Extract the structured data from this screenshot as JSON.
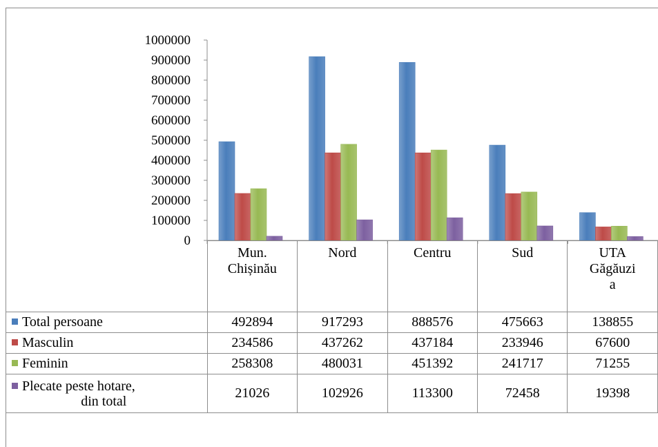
{
  "chart_data": {
    "type": "bar",
    "categories": [
      "Mun. Chișinău",
      "Nord",
      "Centru",
      "Sud",
      "UTA Găgăuzia"
    ],
    "category_labels": [
      "Mun.\nChișinău",
      "Nord",
      "Centru",
      "Sud",
      "UTA\nGăgăuzi\na"
    ],
    "series": [
      {
        "name": "Total persoane",
        "color": "#4a7ebb",
        "values": [
          492894,
          917293,
          888576,
          475663,
          138855
        ]
      },
      {
        "name": "Masculin",
        "color": "#be4b48",
        "values": [
          234586,
          437262,
          437184,
          233946,
          67600
        ]
      },
      {
        "name": "Feminin",
        "color": "#98b954",
        "values": [
          258308,
          480031,
          451392,
          241717,
          71255
        ]
      },
      {
        "name": "Plecate peste hotare, din total",
        "color": "#7d60a0",
        "values": [
          21026,
          102926,
          113300,
          72458,
          19398
        ]
      }
    ],
    "ylim": [
      0,
      1000000
    ],
    "yticks": [
      0,
      100000,
      200000,
      300000,
      400000,
      500000,
      600000,
      700000,
      800000,
      900000,
      1000000
    ],
    "grid": false,
    "legend": "data-table"
  }
}
